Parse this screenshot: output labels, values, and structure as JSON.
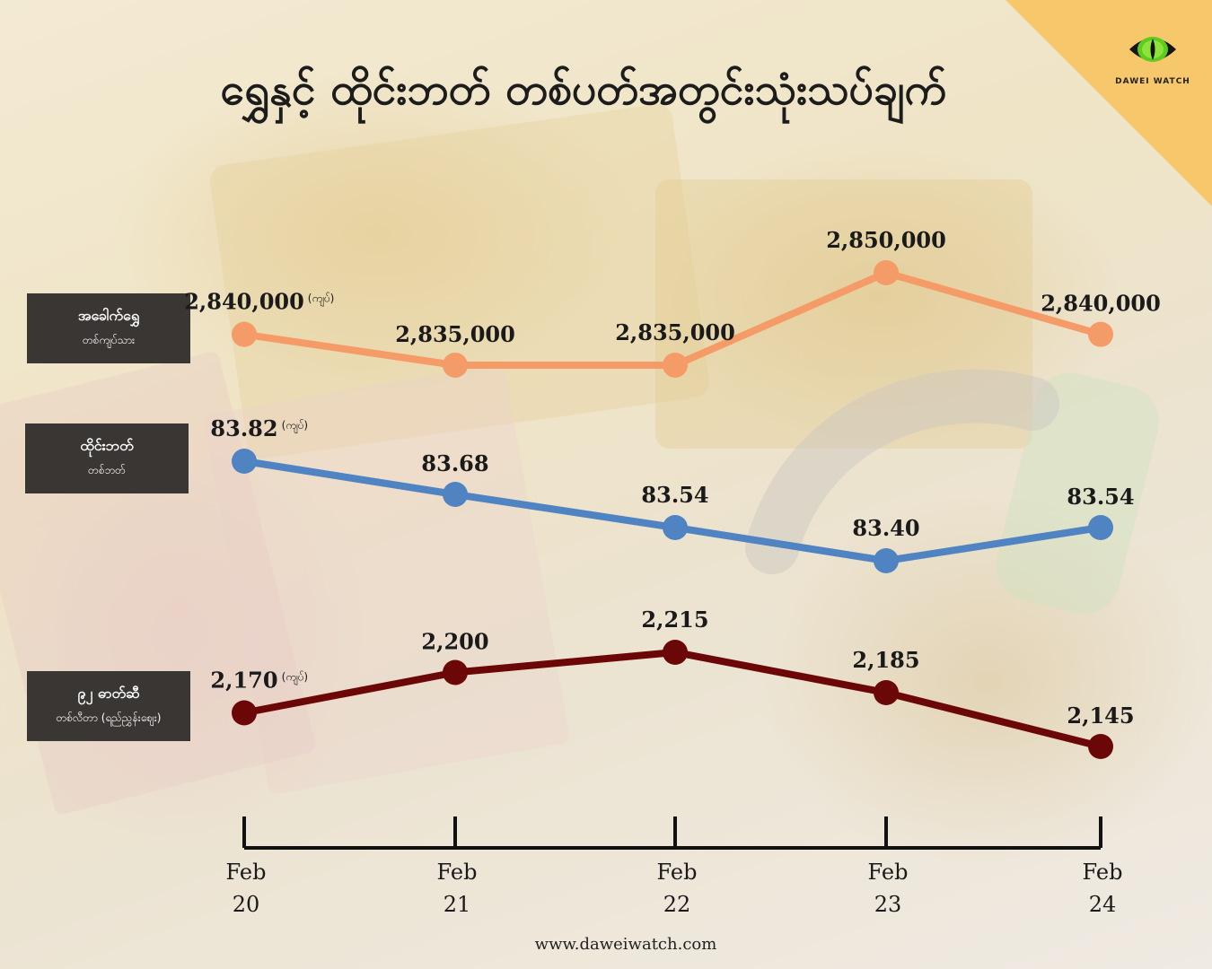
{
  "title": "ရွှေနှင့် ထိုင်းဘတ် တစ်ပတ်အတွင်းသုံးသပ်ချက်",
  "logo": {
    "text": "DAWEI WATCH",
    "icon": "cat-eye-icon"
  },
  "footer": "www.daweiwatch.com",
  "unit_note": "(ကျပ်)",
  "colors": {
    "gold": "#f59b68",
    "baht": "#4f83c2",
    "fuel": "#6b0707",
    "legend_bg": "#3a3634",
    "corner": "#f6c86b"
  },
  "chart_data": {
    "type": "line",
    "categories": [
      "Feb 20",
      "Feb 21",
      "Feb 22",
      "Feb 23",
      "Feb 24"
    ],
    "x_labels": [
      {
        "month": "Feb",
        "day": "20"
      },
      {
        "month": "Feb",
        "day": "21"
      },
      {
        "month": "Feb",
        "day": "22"
      },
      {
        "month": "Feb",
        "day": "23"
      },
      {
        "month": "Feb",
        "day": "24"
      }
    ],
    "grid": false,
    "series": [
      {
        "key": "gold",
        "name": "အခေါက်ရွှေ",
        "unit_label": "တစ်ကျပ်သား",
        "values": [
          2840000,
          2835000,
          2835000,
          2850000,
          2840000
        ],
        "labels": [
          "2,840,000",
          "2,835,000",
          "2,835,000",
          "2,850,000",
          "2,840,000"
        ],
        "color": "#f59b68"
      },
      {
        "key": "baht",
        "name": "ထိုင်းဘတ်",
        "unit_label": "တစ်ဘတ်",
        "values": [
          83.82,
          83.68,
          83.54,
          83.4,
          83.54
        ],
        "labels": [
          "83.82",
          "83.68",
          "83.54",
          "83.40",
          "83.54"
        ],
        "color": "#4f83c2"
      },
      {
        "key": "fuel",
        "name": "၉၂ ဓာတ်ဆီ",
        "unit_label": "တစ်လီတာ (ရည်ညွှန်းဈေး)",
        "values": [
          2170,
          2200,
          2215,
          2185,
          2145
        ],
        "labels": [
          "2,170",
          "2,200",
          "2,215",
          "2,185",
          "2,145"
        ],
        "color": "#6b0707"
      }
    ]
  }
}
